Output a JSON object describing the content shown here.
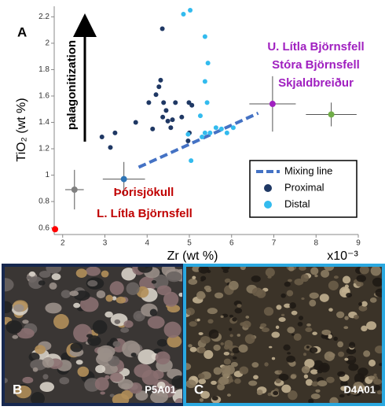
{
  "chart_data": {
    "type": "scatter",
    "panel_letter": "A",
    "xlabel": "Zr (wt %)",
    "x_unit": "x10⁻³",
    "ylabel": "TiO₂ (wt %)",
    "arrow_label": "palagonitization",
    "xlim": [
      1.8,
      9.0
    ],
    "xticks": [
      2,
      3,
      4,
      5,
      6,
      7,
      8,
      9
    ],
    "ylim": [
      0.55,
      2.28
    ],
    "yticks": [
      0.6,
      0.8,
      1,
      1.2,
      1.4,
      1.6,
      1.8,
      2,
      2.2
    ],
    "series": [
      {
        "name": "Mixing line",
        "color": "#4472c4",
        "style": "dashed",
        "x": [
          3.8,
          6.63
        ],
        "y": [
          1.06,
          1.47
        ]
      },
      {
        "name": "Proximal",
        "color": "#1f3864",
        "style": "marker",
        "x": [
          2.93,
          3.13,
          3.24,
          3.73,
          4.04,
          4.21,
          4.36,
          4.32,
          4.28,
          4.39,
          4.45,
          4.37,
          4.49,
          4.6,
          4.56,
          4.67,
          4.82,
          4.99,
          5.06,
          4.97,
          5.0,
          4.13
        ],
        "y": [
          1.29,
          1.21,
          1.32,
          1.4,
          1.55,
          1.61,
          2.11,
          1.72,
          1.67,
          1.55,
          1.49,
          1.44,
          1.41,
          1.42,
          1.36,
          1.55,
          1.44,
          1.55,
          1.53,
          1.26,
          1.32,
          1.35
        ]
      },
      {
        "name": "Distal",
        "color": "#33bbee",
        "style": "marker",
        "x": [
          4.86,
          5.02,
          5.37,
          5.44,
          5.37,
          5.42,
          5.26,
          5.37,
          5.49,
          5.63,
          5.76,
          5.89,
          6.04,
          5.04,
          4.97,
          5.3
        ],
        "y": [
          2.22,
          2.25,
          2.05,
          1.85,
          1.71,
          1.55,
          1.45,
          1.32,
          1.32,
          1.36,
          1.35,
          1.32,
          1.36,
          1.11,
          1.31,
          1.29
        ]
      }
    ],
    "points": [
      {
        "x": 2.28,
        "y": 0.89,
        "xerr": 0.22,
        "yerr": 0.15,
        "color": "#808080"
      },
      {
        "x": 3.45,
        "y": 0.97,
        "xerr": 0.5,
        "yerr": 0.13,
        "color": "#2e75b6"
      },
      {
        "x": 6.97,
        "y": 1.54,
        "xerr": 0.55,
        "yerr": 0.21,
        "color": "#a020c0"
      },
      {
        "x": 8.36,
        "y": 1.46,
        "xerr": 0.6,
        "yerr": 0.09,
        "color": "#70ad47"
      },
      {
        "x": 1.82,
        "y": 0.59,
        "xerr": 0,
        "yerr": 0,
        "color": "#ff0000"
      }
    ],
    "annotations": [
      {
        "text": "U. Lítla Björnsfell",
        "color": "#a020c0"
      },
      {
        "text": "Stóra Björnsfell",
        "color": "#a020c0"
      },
      {
        "text": "Skjaldbreiður",
        "color": "#a020c0"
      },
      {
        "text": "Þórisjökull",
        "color": "#c00000"
      },
      {
        "text": "L. Lítla Björnsfell",
        "color": "#c00000"
      }
    ]
  },
  "panels": [
    {
      "letter": "B",
      "label": "P5A01",
      "border": "#17284f"
    },
    {
      "letter": "C",
      "label": "D4A01",
      "border": "#2aa8e0"
    }
  ]
}
